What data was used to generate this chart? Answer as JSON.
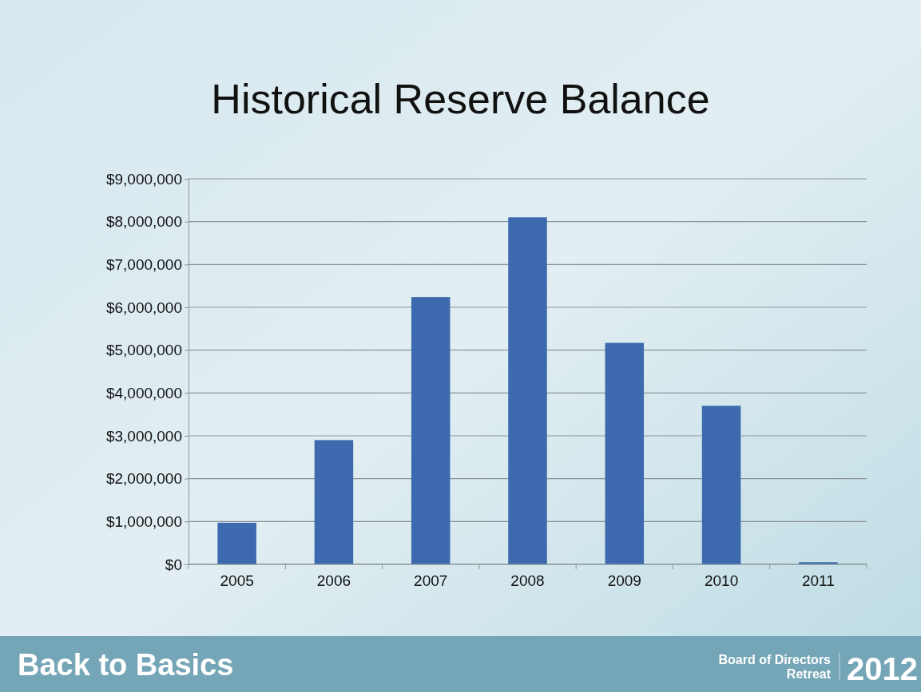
{
  "chart_data": {
    "type": "bar",
    "title": "Historical Reserve Balance",
    "categories": [
      "2005",
      "2006",
      "2007",
      "2008",
      "2009",
      "2010",
      "2011"
    ],
    "values": [
      970000,
      2900000,
      6240000,
      8100000,
      5170000,
      3700000,
      50000
    ],
    "color": "#3d6aaf",
    "ylim": [
      0,
      9000000
    ],
    "yticks": [
      {
        "value": 0,
        "label": "$0"
      },
      {
        "value": 1000000,
        "label": "$1,000,000"
      },
      {
        "value": 2000000,
        "label": "$2,000,000"
      },
      {
        "value": 3000000,
        "label": "$3,000,000"
      },
      {
        "value": 4000000,
        "label": "$4,000,000"
      },
      {
        "value": 5000000,
        "label": "$5,000,000"
      },
      {
        "value": 6000000,
        "label": "$6,000,000"
      },
      {
        "value": 7000000,
        "label": "$7,000,000"
      },
      {
        "value": 8000000,
        "label": "$8,000,000"
      },
      {
        "value": 9000000,
        "label": "$9,000,000"
      }
    ],
    "grid": "y",
    "annotations": [
      "Back to Basics",
      "Board of Directors Retreat",
      "2012"
    ]
  }
}
